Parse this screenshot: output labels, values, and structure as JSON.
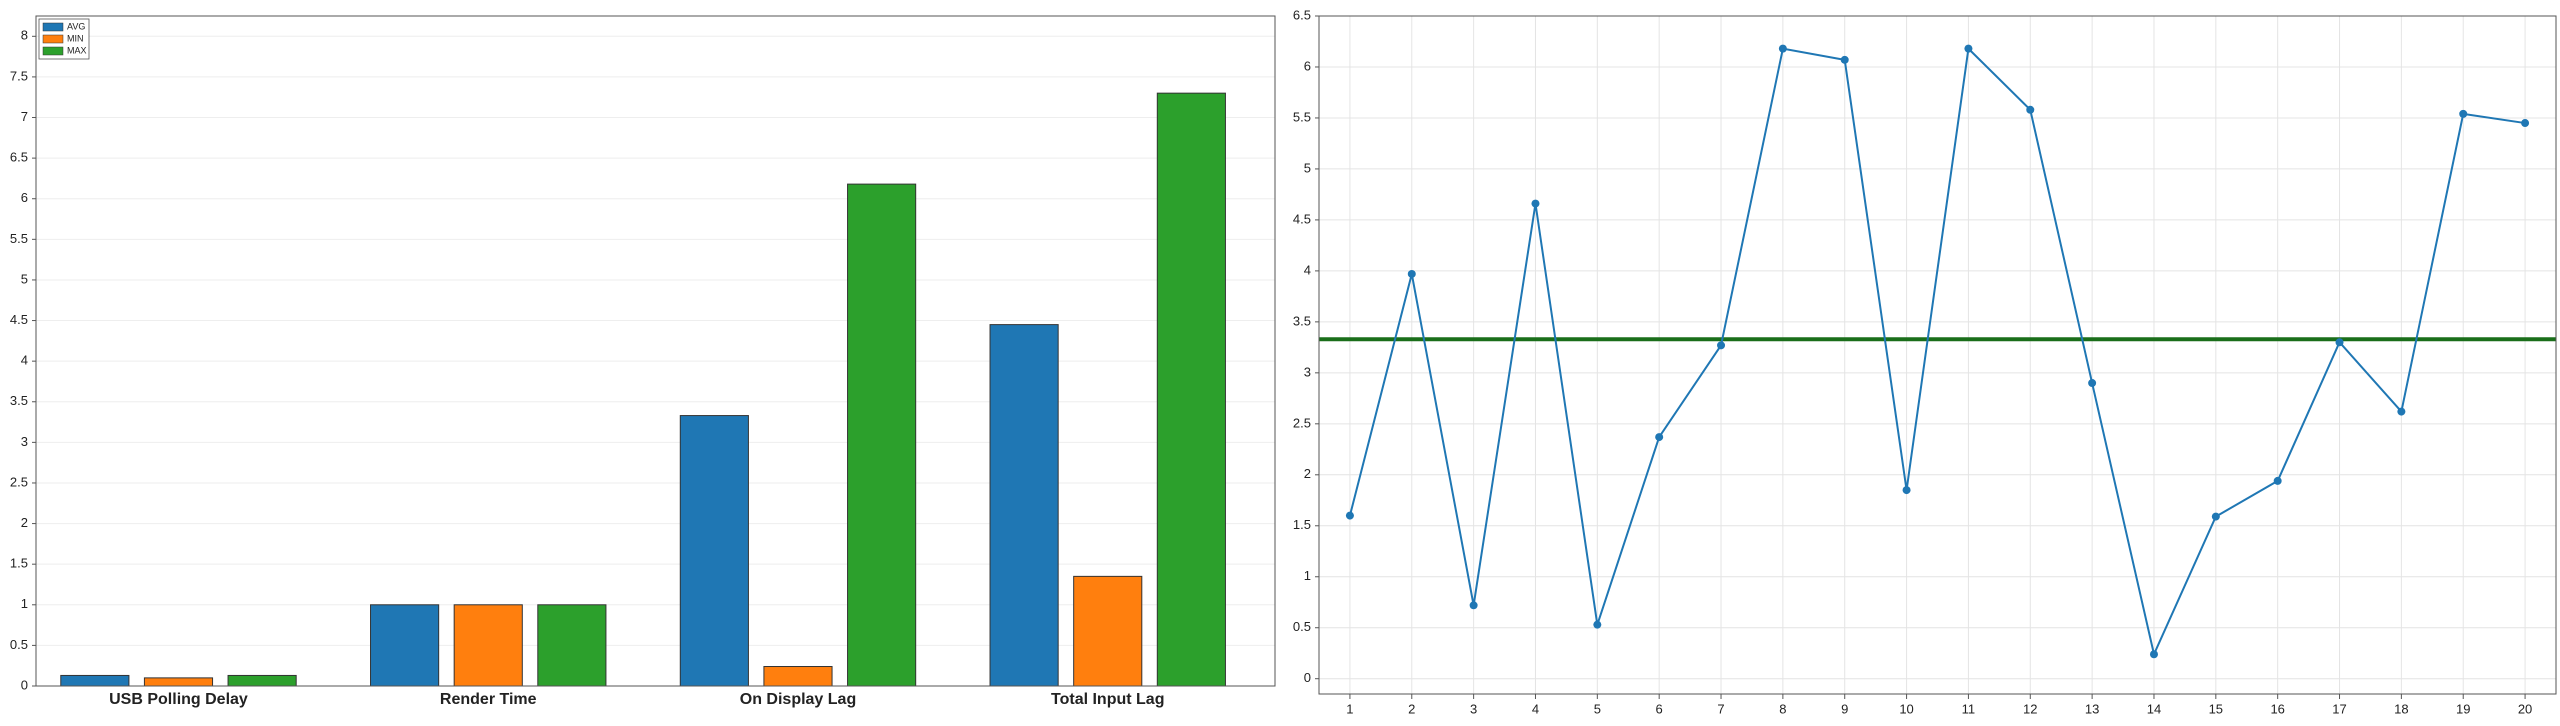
{
  "chart_data": [
    {
      "type": "bar",
      "categories": [
        "USB Polling Delay",
        "Render Time",
        "On Display Lag",
        "Total Input Lag"
      ],
      "series": [
        {
          "name": "AVG",
          "color": "#1f77b4",
          "values": [
            0.13,
            1,
            3.33,
            4.45
          ]
        },
        {
          "name": "MIN",
          "color": "#ff7f0e",
          "values": [
            0.1,
            1,
            0.24,
            1.35
          ]
        },
        {
          "name": "MAX",
          "color": "#2ca02c",
          "values": [
            0.13,
            1,
            6.18,
            7.3
          ]
        }
      ],
      "ylim": [
        0,
        8.25
      ],
      "yticks": [
        0,
        0.5,
        1,
        1.5,
        2,
        2.5,
        3,
        3.5,
        4,
        4.5,
        5,
        5.5,
        6,
        6.5,
        7,
        7.5,
        8
      ],
      "grid": true,
      "legend": "top-left"
    },
    {
      "type": "line",
      "x": [
        1,
        2,
        3,
        4,
        5,
        6,
        7,
        8,
        9,
        10,
        11,
        12,
        13,
        14,
        15,
        16,
        17,
        18,
        19,
        20
      ],
      "series": [
        {
          "color": "#1f77b4",
          "values": [
            1.6,
            3.97,
            0.72,
            4.66,
            0.53,
            2.37,
            3.27,
            6.18,
            6.07,
            1.85,
            6.18,
            5.58,
            2.9,
            0.24,
            1.59,
            1.94,
            3.3,
            2.62,
            5.54,
            5.45
          ]
        }
      ],
      "hline": {
        "value": 3.33,
        "color": "#1a6e1a"
      },
      "xlim": [
        0.5,
        20.5
      ],
      "ylim": [
        -0.15,
        6.5
      ],
      "xticks": [
        1,
        2,
        3,
        4,
        5,
        6,
        7,
        8,
        9,
        10,
        11,
        12,
        13,
        14,
        15,
        16,
        17,
        18,
        19,
        20
      ],
      "yticks": [
        0,
        0.5,
        1,
        1.5,
        2,
        2.5,
        3,
        3.5,
        4,
        4.5,
        5,
        5.5,
        6,
        6.5
      ],
      "grid": true
    }
  ]
}
